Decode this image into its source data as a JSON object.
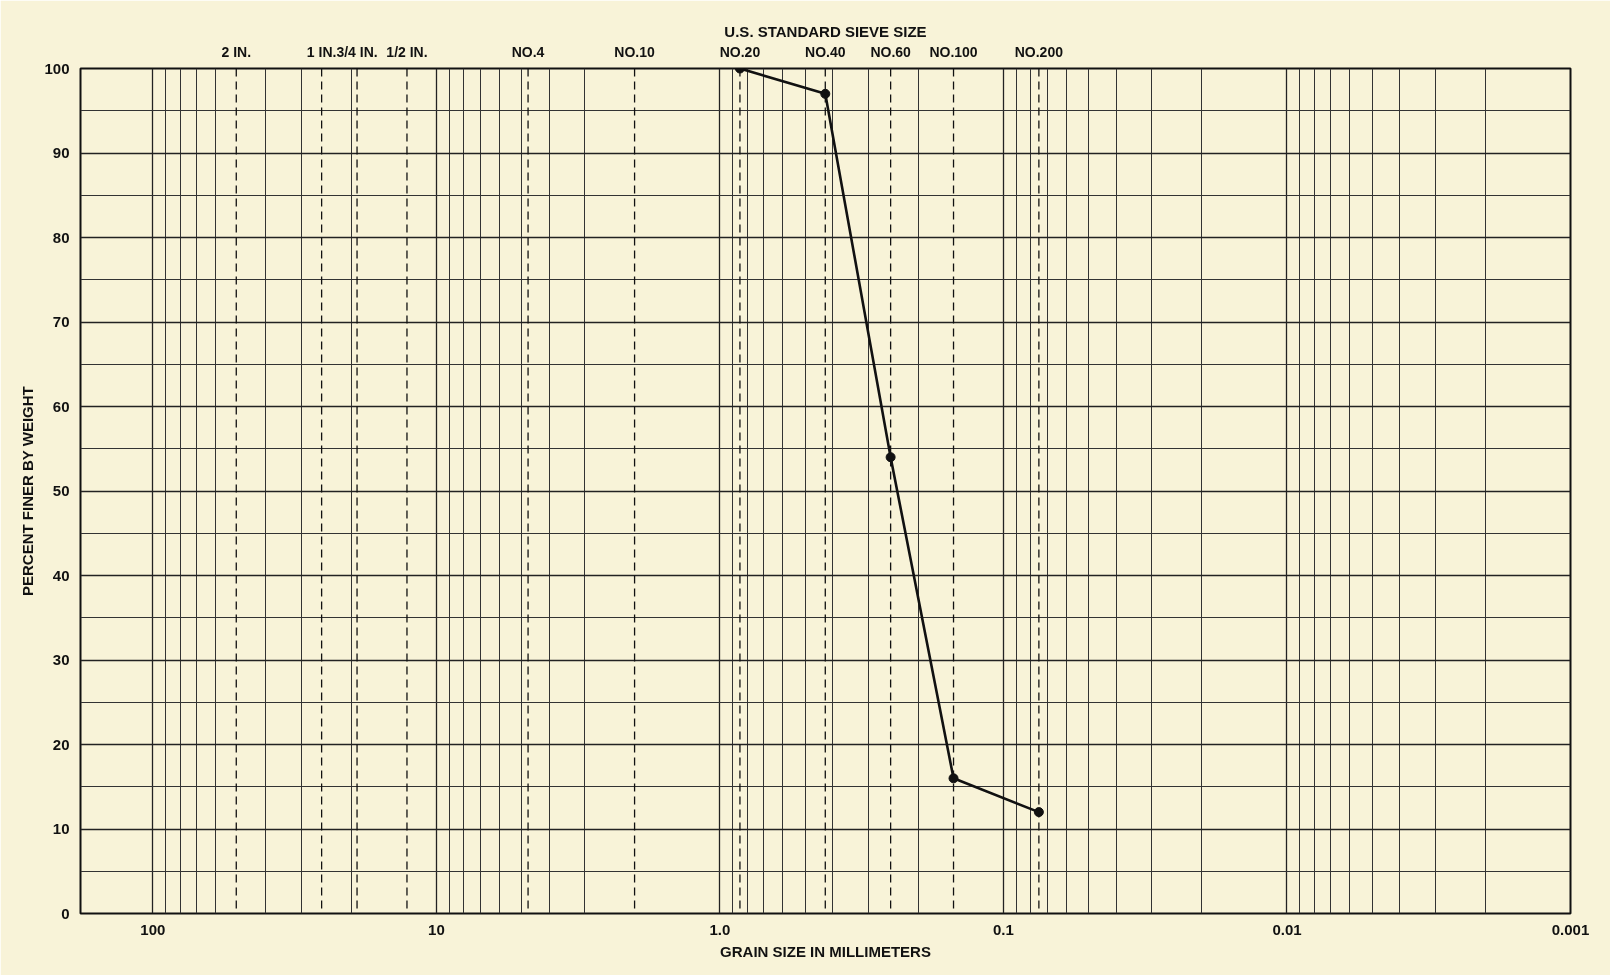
{
  "chart_data": {
    "type": "line",
    "title": "U.S. STANDARD SIEVE SIZE",
    "xlabel": "GRAIN SIZE IN MILLIMETERS",
    "ylabel": "PERCENT FINER BY WEIGHT",
    "series": [
      {
        "color": "#111111",
        "x": [
          0.85,
          0.425,
          0.25,
          0.15,
          0.075
        ],
        "values": [
          100,
          97,
          54,
          16,
          12
        ]
      }
    ],
    "marker": "circle",
    "line_style": "solid",
    "log": "x",
    "xlim": [
      180,
      0.001
    ],
    "xticks": [
      100,
      10,
      {
        "value": 1,
        "label": "1.0"
      },
      0.1,
      0.01,
      0.001
    ],
    "ylim": [
      0,
      100
    ],
    "yticks": [
      0,
      10,
      20,
      30,
      40,
      50,
      60,
      70,
      80,
      90,
      100
    ],
    "grid": true,
    "ref_lines": [
      {
        "axis": "x",
        "value": 50.8,
        "label": "2 IN.",
        "line_style": "dashed"
      },
      {
        "axis": "x",
        "value": 25.4,
        "label": "1 IN.",
        "line_style": "dashed"
      },
      {
        "axis": "x",
        "value": 19.05,
        "label": "3/4 IN.",
        "line_style": "dashed"
      },
      {
        "axis": "x",
        "value": 12.7,
        "label": "1/2 IN.",
        "line_style": "dashed"
      },
      {
        "axis": "x",
        "value": 4.75,
        "label": "NO.4",
        "line_style": "dashed"
      },
      {
        "axis": "x",
        "value": 2.0,
        "label": "NO.10",
        "line_style": "dashed"
      },
      {
        "axis": "x",
        "value": 0.85,
        "label": "NO.20",
        "line_style": "dashed"
      },
      {
        "axis": "x",
        "value": 0.425,
        "label": "NO.40",
        "line_style": "dashed"
      },
      {
        "axis": "x",
        "value": 0.25,
        "label": "NO.60",
        "line_style": "dashed"
      },
      {
        "axis": "x",
        "value": 0.15,
        "label": "NO.100",
        "line_style": "dashed"
      },
      {
        "axis": "x",
        "value": 0.075,
        "label": "NO.200",
        "line_style": "dashed"
      }
    ]
  }
}
